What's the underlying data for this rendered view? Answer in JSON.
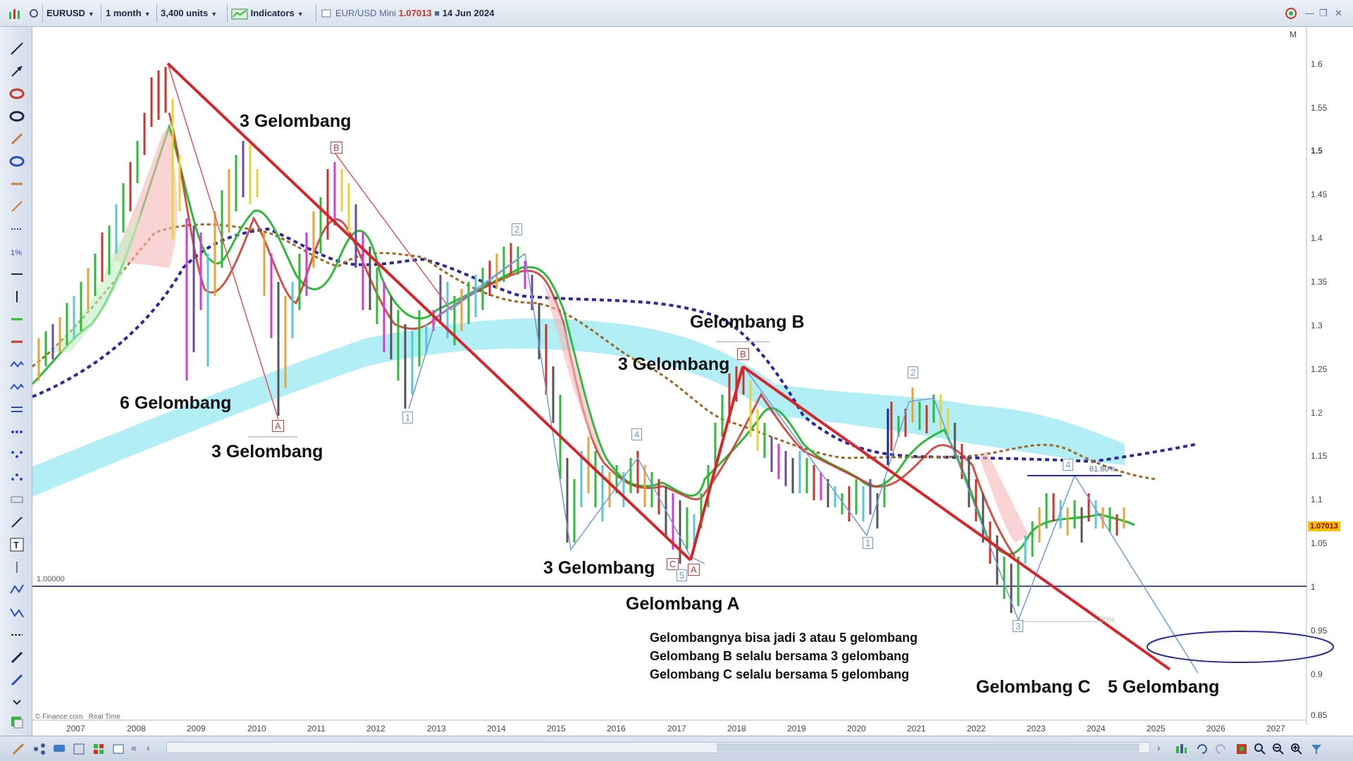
{
  "toolbar": {
    "symbol": "EURUSD",
    "timeframe": "1 month",
    "units": "3,400 units",
    "indicators_label": "Indicators",
    "chart_title": "EUR/USD Mini",
    "price": "1.07013",
    "date": "14 Jun 2024",
    "right_indicator": "M"
  },
  "y_axis": {
    "ticks": [
      "1.6",
      "1.55",
      "1.5",
      "1.45",
      "1.4",
      "1.35",
      "1.3",
      "1.25",
      "1.2",
      "1.15",
      "1.1",
      "1.05",
      "1",
      "0.95",
      "0.9",
      "0.85"
    ],
    "price_badge": "1.07013",
    "baseline_label": "1.00000"
  },
  "x_axis": {
    "ticks": [
      "2007",
      "2008",
      "2009",
      "2010",
      "2011",
      "2012",
      "2013",
      "2014",
      "2015",
      "2016",
      "2017",
      "2018",
      "2019",
      "2020",
      "2021",
      "2022",
      "2023",
      "2024",
      "2025",
      "2026",
      "2027"
    ]
  },
  "annotations": {
    "a1": "3 Gelombang",
    "a2": "6 Gelombang",
    "a3": "3 Gelombang",
    "a4": "Gelombang B",
    "a5": "3 Gelombang",
    "a6": "3 Gelombang",
    "a7": "Gelombang A",
    "a8": "Gelombang C",
    "a9": "5 Gelombang"
  },
  "notes": [
    "Gelombangnya bisa jadi 3 atau 5 gelombang",
    "Gelombang B selalu bersama 3 gelombang",
    "Gelombang C selalu bersama 5 gelombang"
  ],
  "wave_labels": {
    "a_2009": "A",
    "b_2011": "B",
    "two_2014": "2",
    "one_2012": "1",
    "four_2016": "4",
    "c_2017": "C",
    "five_2017": "5",
    "a_2017": "A",
    "b_2018": "B",
    "two_2021": "2",
    "one_2020": "1",
    "four_2023": "4",
    "three_2022": "3"
  },
  "fib_labels": {
    "f1": "61.80%",
    "f2": "50%"
  },
  "footer": {
    "source": "© Finance.com",
    "mode": "Real Time"
  },
  "colors": {
    "trendline": "#d6262a",
    "wave_a": "#d23c3c",
    "wave_num": "#6f9bd8",
    "cloud": "#a9ecf4",
    "ma_dash": "#2a2a9a",
    "ma_fast": "#2dbb3a",
    "ma_mid": "#c8352a",
    "ma_slow": "#9c6a22"
  }
}
